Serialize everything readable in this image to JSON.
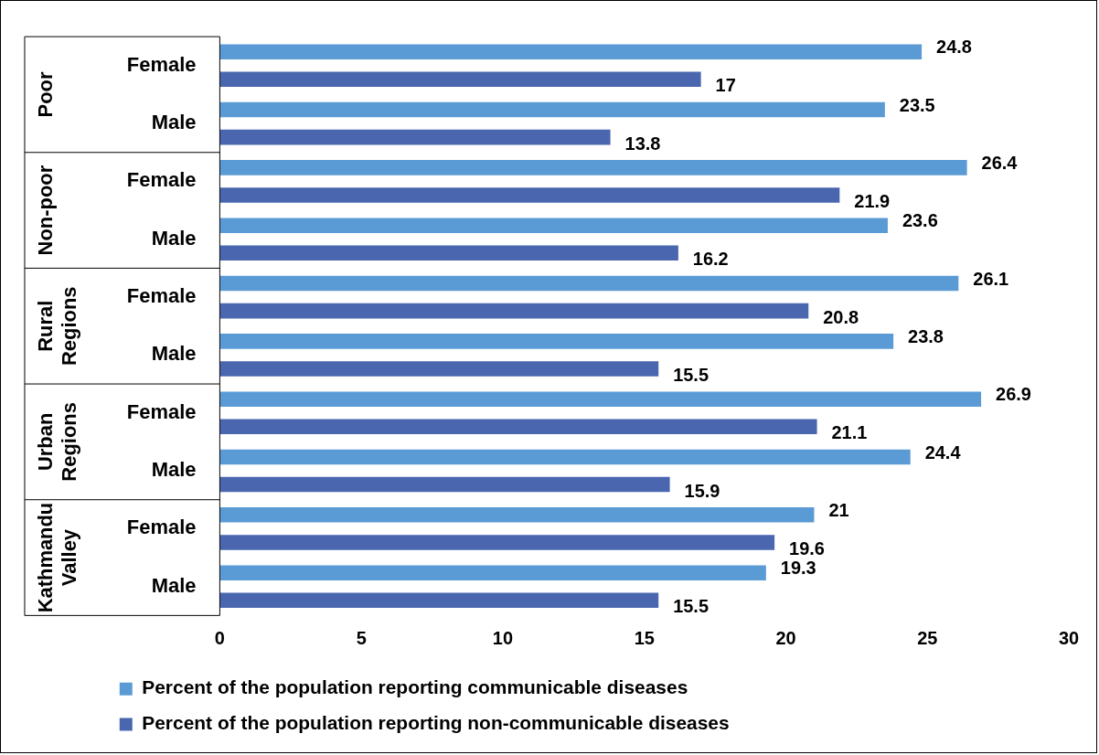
{
  "chart_data": {
    "type": "bar",
    "orientation": "horizontal",
    "categories": [
      "Female",
      "Male",
      "Female",
      "Male",
      "Female",
      "Male",
      "Female",
      "Male",
      "Female",
      "Male"
    ],
    "annotations": [
      "Poor",
      "Non-poor",
      "Rural Regions",
      "Urban Regions",
      "Kathmandu Valley"
    ],
    "series": [
      {
        "name": "Percent of the population reporting communicable diseases",
        "color": "#5b9bd5",
        "values": [
          24.8,
          23.5,
          26.4,
          23.6,
          26.1,
          23.8,
          26.9,
          24.4,
          21,
          19.3
        ]
      },
      {
        "name": "Percent of the population reporting non-communicable diseases",
        "color": "#4a66ae",
        "values": [
          17,
          13.8,
          21.9,
          16.2,
          20.8,
          15.5,
          21.1,
          15.9,
          19.6,
          15.5
        ]
      }
    ],
    "xlim": [
      0,
      30
    ],
    "xticks": [
      0,
      5,
      10,
      15,
      20,
      25,
      30
    ],
    "grid": false,
    "legend": "bottom",
    "data_labels": true
  }
}
